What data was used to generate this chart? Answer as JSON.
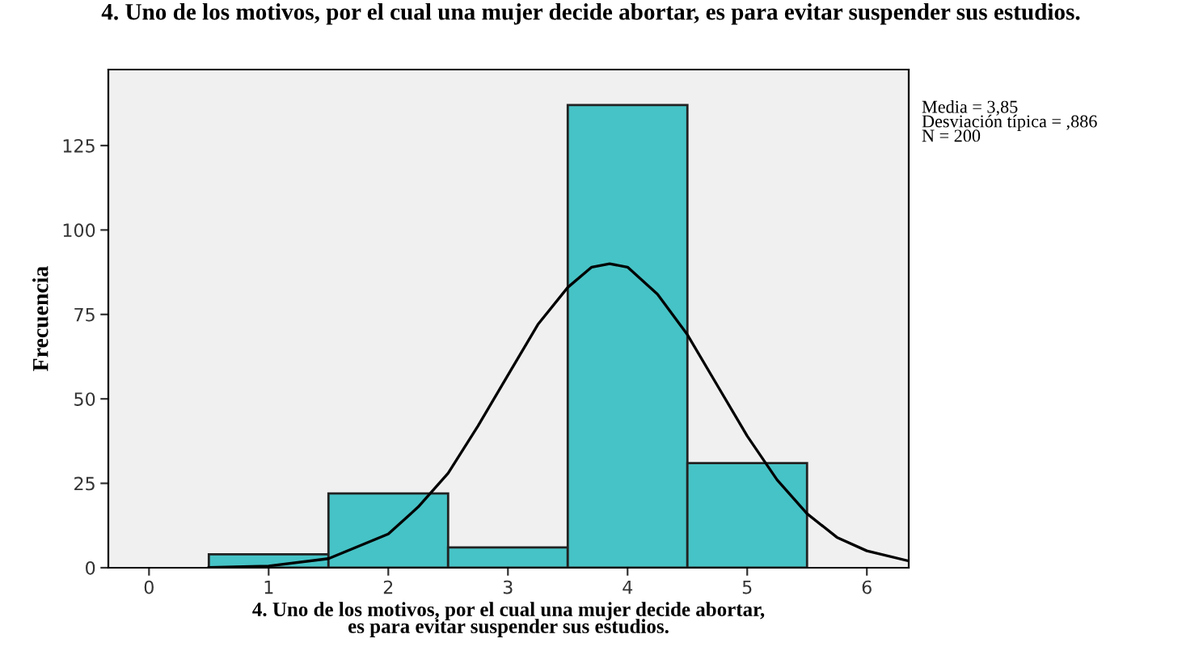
{
  "chart_data": {
    "type": "histogram",
    "title": "4. Uno de los motivos, por el cual una mujer decide abortar, es para evitar suspender sus estudios.",
    "xlabel": "4. Uno de los motivos, por el cual una mujer decide abortar,\nes para evitar suspender sus estudios.",
    "ylabel": "Frecuencia",
    "bins": [
      0.5,
      1.5,
      2.5,
      3.5,
      4.5,
      5.5
    ],
    "values": [
      4,
      22,
      6,
      137,
      31
    ],
    "color": "#46c3c6",
    "series": [
      {
        "type": "line",
        "color": "#000000",
        "x": [
          0.5,
          1,
          1.5,
          2,
          2.25,
          2.5,
          2.75,
          3,
          3.25,
          3.5,
          3.7,
          3.85,
          4,
          4.25,
          4.5,
          4.75,
          5,
          5.25,
          5.5,
          5.75,
          6,
          6.35
        ],
        "values": [
          0.1,
          0.5,
          2.7,
          10,
          18,
          28,
          42,
          57,
          72,
          83,
          89,
          90,
          89,
          81,
          69,
          54,
          39,
          26,
          16,
          9,
          5,
          2
        ]
      }
    ],
    "xlim": [
      -0.34,
      6.35
    ],
    "ylim": [
      0,
      147.5
    ],
    "xticks": [
      0,
      1,
      2,
      3,
      4,
      5,
      6
    ],
    "yticks": [
      0,
      25,
      50,
      75,
      100,
      125
    ],
    "grid": false,
    "legend": false,
    "annotations": [
      "Media = 3,85\nDesviación típica = ,886\nN = 200"
    ]
  }
}
